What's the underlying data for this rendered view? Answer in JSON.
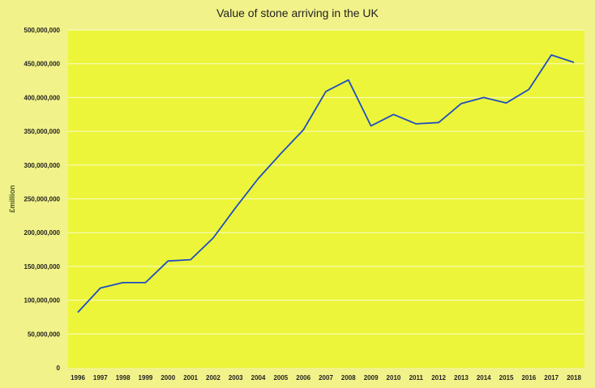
{
  "colors": {
    "page_background": "#f2f28a",
    "plot_background": "#ecf53a",
    "line": "#1f4fc0",
    "grid": "#ffffff"
  },
  "chart_data": {
    "type": "line",
    "title": "Value of stone arriving in the UK",
    "xlabel": "",
    "ylabel": "£million",
    "ylim": [
      0,
      500000000
    ],
    "grid": true,
    "legend": "none",
    "y_ticks": [
      0,
      50000000,
      100000000,
      150000000,
      200000000,
      250000000,
      300000000,
      350000000,
      400000000,
      450000000,
      500000000
    ],
    "y_tick_labels": [
      "0",
      "50,000,000",
      "100,000,000",
      "150,000,000",
      "200,000,000",
      "250,000,000",
      "300,000,000",
      "350,000,000",
      "400,000,000",
      "450,000,000",
      "500,000,000"
    ],
    "categories": [
      "1996",
      "1997",
      "1998",
      "1999",
      "2000",
      "2001",
      "2002",
      "2003",
      "2004",
      "2005",
      "2006",
      "2007",
      "2008",
      "2009",
      "2010",
      "2011",
      "2012",
      "2013",
      "2014",
      "2015",
      "2016",
      "2017",
      "2018"
    ],
    "series": [
      {
        "values": [
          82000000,
          118000000,
          126000000,
          126000000,
          158000000,
          160000000,
          192000000,
          237000000,
          280000000,
          317000000,
          352000000,
          409000000,
          426000000,
          358000000,
          375000000,
          361000000,
          363000000,
          391000000,
          400000000,
          392000000,
          412000000,
          463000000,
          452000000
        ]
      }
    ]
  }
}
